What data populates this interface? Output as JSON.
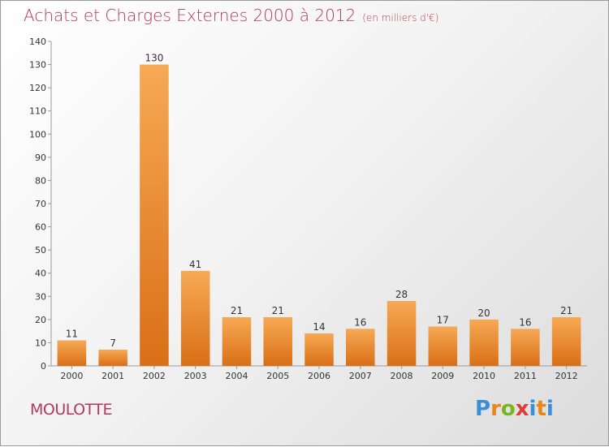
{
  "title": "Achats et Charges Externes 2000 à 2012",
  "unit": "(en milliers d'€)",
  "location": "MOULOTTE",
  "logo": {
    "letters": [
      "P",
      "r",
      "o",
      "x",
      "i",
      "t",
      "i"
    ],
    "colors": [
      "#3b8fd6",
      "#e8861a",
      "#7ab623",
      "#e23b3b",
      "#3b8fd6",
      "#e8861a",
      "#3b8fd6"
    ]
  },
  "colors": {
    "bar_top": "#f7a955",
    "bar_bottom": "#d96f16",
    "axis": "#999999"
  },
  "chart_data": {
    "type": "bar",
    "categories": [
      "2000",
      "2001",
      "2002",
      "2003",
      "2004",
      "2005",
      "2006",
      "2007",
      "2008",
      "2009",
      "2010",
      "2011",
      "2012"
    ],
    "values": [
      11,
      7,
      130,
      41,
      21,
      21,
      14,
      16,
      28,
      17,
      20,
      16,
      21
    ],
    "title": "Achats et Charges Externes 2000 à 2012",
    "xlabel": "",
    "ylabel": "",
    "ylim": [
      0,
      140
    ],
    "yticks": [
      0,
      10,
      20,
      30,
      40,
      50,
      60,
      70,
      80,
      90,
      100,
      110,
      120,
      130,
      140
    ],
    "grid": false,
    "data_labels": true
  }
}
